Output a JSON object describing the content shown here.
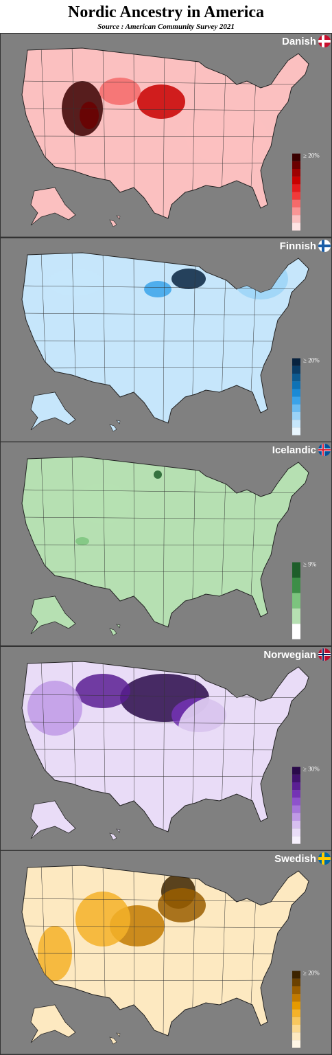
{
  "header": {
    "title": "Nordic Ancestry in America",
    "source": "Source : American Community Survey 2021"
  },
  "panels": [
    {
      "name": "Danish",
      "legend": {
        "label": "≥ 20%",
        "colors": [
          "#3a0000",
          "#6b0000",
          "#9e0000",
          "#c80000",
          "#e31a1c",
          "#f03a3a",
          "#f56a6a",
          "#f99595",
          "#fbc0c0",
          "#ffe3e3"
        ]
      }
    },
    {
      "name": "Finnish",
      "legend": {
        "label": "≥ 20%",
        "colors": [
          "#08233f",
          "#0b3d66",
          "#0d5a8f",
          "#0e72b5",
          "#1a8ad6",
          "#3aa3ea",
          "#6bbcf2",
          "#9bd3f7",
          "#c6e6fb",
          "#e8f5fd"
        ]
      }
    },
    {
      "name": "Icelandic",
      "legend": {
        "label": "≥ 9%",
        "colors": [
          "#1e5e2a",
          "#3d8e47",
          "#7cc47e",
          "#b6e0b2",
          "#ffffff"
        ]
      }
    },
    {
      "name": "Norwegian",
      "legend": {
        "label": "≥ 30%",
        "colors": [
          "#2a0a4a",
          "#41136e",
          "#5a1f93",
          "#7433b5",
          "#8e52cc",
          "#a775db",
          "#c09ae6",
          "#d7bff0",
          "#e9dcf7",
          "#f6f0fc"
        ]
      }
    },
    {
      "name": "Swedish",
      "legend": {
        "label": "≥ 20%",
        "colors": [
          "#3d2400",
          "#6b4100",
          "#9a5e00",
          "#c27a00",
          "#e69a00",
          "#f5b229",
          "#f8c75e",
          "#fbd991",
          "#fde9c1",
          "#fff6e6"
        ]
      }
    }
  ]
}
